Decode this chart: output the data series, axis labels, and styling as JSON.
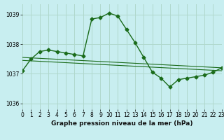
{
  "title": "Graphe pression niveau de la mer (hPa)",
  "bg_color": "#c8eef0",
  "grid_color": "#b0d8cc",
  "line_color": "#1a6b1a",
  "xlim": [
    0,
    23
  ],
  "ylim": [
    1035.8,
    1039.35
  ],
  "yticks": [
    1036,
    1037,
    1038,
    1039
  ],
  "xticks": [
    0,
    1,
    2,
    3,
    4,
    5,
    6,
    7,
    8,
    9,
    10,
    11,
    12,
    13,
    14,
    15,
    16,
    17,
    18,
    19,
    20,
    21,
    22,
    23
  ],
  "series1_x": [
    0,
    1,
    2,
    3,
    4,
    5,
    6,
    7,
    8,
    9,
    10,
    11,
    12,
    13,
    14,
    15,
    16,
    17,
    18,
    19,
    20,
    21,
    22,
    23
  ],
  "series1_y": [
    1037.1,
    1037.5,
    1037.75,
    1037.8,
    1037.75,
    1037.7,
    1037.65,
    1037.6,
    1038.85,
    1038.9,
    1039.05,
    1038.95,
    1038.5,
    1038.05,
    1037.55,
    1037.05,
    1036.85,
    1036.55,
    1036.8,
    1036.85,
    1036.9,
    1036.95,
    1037.05,
    1037.2
  ],
  "trend1_x": [
    0,
    23
  ],
  "trend1_y": [
    1037.55,
    1037.2
  ],
  "trend2_x": [
    0,
    23
  ],
  "trend2_y": [
    1037.45,
    1037.1
  ],
  "xlabel_fontsize": 6.5,
  "tick_fontsize": 5.5,
  "line_width": 1.0,
  "marker": "D",
  "markersize": 2.5
}
